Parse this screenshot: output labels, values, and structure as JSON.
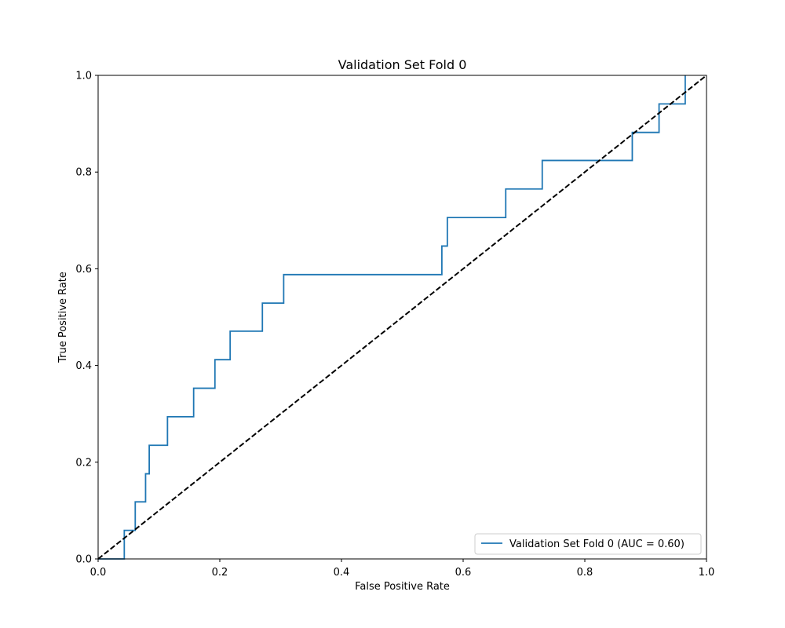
{
  "chart_data": {
    "type": "line",
    "title": "Validation Set Fold 0",
    "xlabel": "False Positive Rate",
    "ylabel": "True Positive Rate",
    "xlim": [
      0.0,
      1.0
    ],
    "ylim": [
      0.0,
      1.0
    ],
    "xticks": [
      "0.0",
      "0.2",
      "0.4",
      "0.6",
      "0.8",
      "1.0"
    ],
    "yticks": [
      "0.0",
      "0.2",
      "0.4",
      "0.6",
      "0.8",
      "1.0"
    ],
    "grid": false,
    "legend_position": "lower-right",
    "series": [
      {
        "name": "Validation Set Fold 0 (AUC = 0.60)",
        "style": "solid",
        "color": "#1f77b4",
        "x": [
          0.0,
          0.043,
          0.043,
          0.061,
          0.061,
          0.078,
          0.078,
          0.084,
          0.084,
          0.114,
          0.114,
          0.157,
          0.157,
          0.192,
          0.192,
          0.217,
          0.217,
          0.27,
          0.27,
          0.305,
          0.305,
          0.565,
          0.565,
          0.574,
          0.574,
          0.67,
          0.67,
          0.73,
          0.73,
          0.878,
          0.878,
          0.922,
          0.922,
          0.965,
          0.965
        ],
        "y": [
          0.0,
          0.0,
          0.059,
          0.059,
          0.118,
          0.118,
          0.176,
          0.176,
          0.235,
          0.235,
          0.294,
          0.294,
          0.353,
          0.353,
          0.412,
          0.412,
          0.471,
          0.471,
          0.529,
          0.529,
          0.588,
          0.588,
          0.647,
          0.647,
          0.706,
          0.706,
          0.765,
          0.765,
          0.824,
          0.824,
          0.882,
          0.882,
          0.941,
          0.941,
          1.0
        ]
      },
      {
        "name": "",
        "style": "dashed",
        "color": "#000000",
        "x": [
          0.0,
          1.0
        ],
        "y": [
          0.0,
          1.0
        ]
      }
    ]
  }
}
